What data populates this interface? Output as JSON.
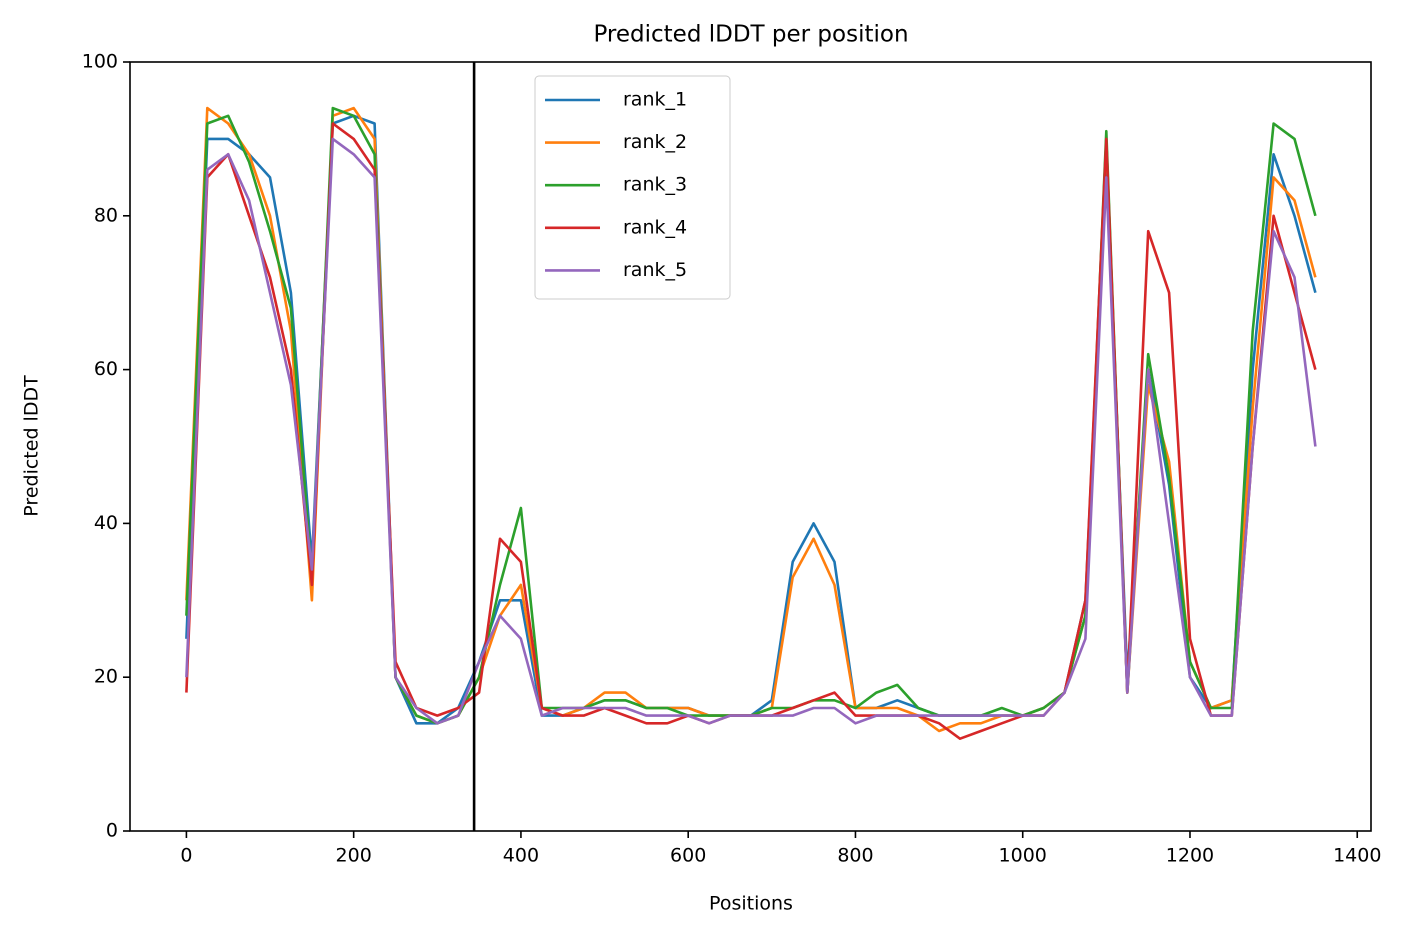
{
  "chart_data": {
    "type": "line",
    "title": "Predicted lDDT per position",
    "xlabel": "Positions",
    "ylabel": "Predicted lDDT",
    "x": [
      0,
      25,
      50,
      75,
      100,
      125,
      150,
      175,
      200,
      225,
      250,
      275,
      300,
      325,
      350,
      375,
      400,
      425,
      450,
      475,
      500,
      525,
      550,
      575,
      600,
      625,
      650,
      675,
      700,
      725,
      750,
      775,
      800,
      825,
      850,
      875,
      900,
      925,
      950,
      975,
      1000,
      1025,
      1050,
      1075,
      1100,
      1125,
      1150,
      1175,
      1200,
      1225,
      1250,
      1275,
      1300,
      1325,
      1350
    ],
    "series": [
      {
        "name": "rank_1",
        "color": "#1f77b4",
        "values": [
          25,
          90,
          90,
          88,
          85,
          70,
          35,
          92,
          93,
          92,
          20,
          14,
          14,
          16,
          22,
          30,
          30,
          15,
          15,
          16,
          17,
          17,
          16,
          16,
          16,
          15,
          15,
          15,
          17,
          35,
          40,
          35,
          16,
          16,
          17,
          16,
          15,
          15,
          15,
          15,
          15,
          16,
          18,
          30,
          88,
          20,
          60,
          45,
          20,
          16,
          17,
          60,
          88,
          80,
          70
        ]
      },
      {
        "name": "rank_2",
        "color": "#ff7f0e",
        "values": [
          30,
          94,
          92,
          88,
          80,
          65,
          30,
          93,
          94,
          90,
          20,
          15,
          14,
          15,
          20,
          28,
          32,
          16,
          15,
          16,
          18,
          18,
          16,
          16,
          16,
          15,
          15,
          15,
          16,
          33,
          38,
          32,
          16,
          16,
          16,
          15,
          13,
          14,
          14,
          15,
          15,
          16,
          18,
          28,
          90,
          18,
          58,
          48,
          22,
          16,
          17,
          55,
          85,
          82,
          72
        ]
      },
      {
        "name": "rank_3",
        "color": "#2ca02c",
        "values": [
          28,
          92,
          93,
          87,
          78,
          68,
          33,
          94,
          93,
          88,
          20,
          15,
          14,
          15,
          20,
          32,
          42,
          16,
          16,
          16,
          17,
          17,
          16,
          16,
          15,
          15,
          15,
          15,
          16,
          16,
          17,
          17,
          16,
          18,
          19,
          16,
          15,
          15,
          15,
          16,
          15,
          16,
          18,
          28,
          91,
          18,
          62,
          46,
          22,
          16,
          16,
          65,
          92,
          90,
          80
        ]
      },
      {
        "name": "rank_4",
        "color": "#d62728",
        "values": [
          18,
          85,
          88,
          80,
          72,
          60,
          32,
          92,
          90,
          86,
          22,
          16,
          15,
          16,
          18,
          38,
          35,
          16,
          15,
          15,
          16,
          15,
          14,
          14,
          15,
          14,
          15,
          15,
          15,
          16,
          17,
          18,
          15,
          15,
          15,
          15,
          14,
          12,
          13,
          14,
          15,
          15,
          18,
          30,
          90,
          18,
          78,
          70,
          25,
          15,
          15,
          50,
          80,
          70,
          60
        ]
      },
      {
        "name": "rank_5",
        "color": "#9467bd",
        "values": [
          20,
          86,
          88,
          82,
          70,
          58,
          34,
          90,
          88,
          85,
          20,
          16,
          14,
          15,
          22,
          28,
          25,
          15,
          16,
          16,
          16,
          16,
          15,
          15,
          15,
          14,
          15,
          15,
          15,
          15,
          16,
          16,
          14,
          15,
          15,
          15,
          15,
          15,
          15,
          15,
          15,
          15,
          18,
          25,
          85,
          18,
          60,
          40,
          20,
          15,
          15,
          50,
          78,
          72,
          50
        ]
      }
    ],
    "vlines": [
      344
    ],
    "vline_color": "#000000",
    "xlim": [
      -67.45,
      1416.45
    ],
    "ylim": [
      0,
      100
    ],
    "xticks": [
      0,
      200,
      400,
      600,
      800,
      1000,
      1200,
      1400
    ],
    "yticks": [
      0,
      20,
      40,
      60,
      80,
      100
    ],
    "legend": "upper center",
    "grid": false
  }
}
